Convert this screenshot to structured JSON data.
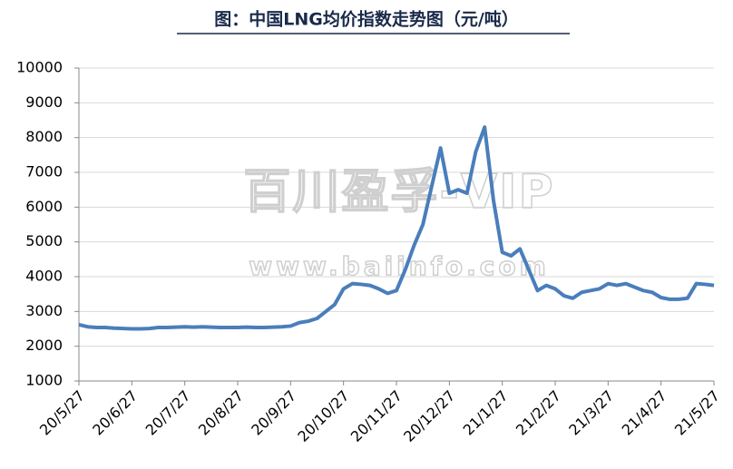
{
  "chart_data": {
    "type": "line",
    "title": "图：中国LNG均价指数走势图（元/吨）",
    "watermark": [
      "百川盈孚-VIP",
      "www.baiinfo.com"
    ],
    "categories": [
      "20/5/27",
      null,
      null,
      null,
      null,
      null,
      "20/6/27",
      null,
      null,
      null,
      null,
      null,
      "20/7/27",
      null,
      null,
      null,
      null,
      null,
      "20/8/27",
      null,
      null,
      null,
      null,
      null,
      "20/9/27",
      null,
      null,
      null,
      null,
      null,
      "20/10/27",
      null,
      null,
      null,
      null,
      null,
      "20/11/27",
      null,
      null,
      null,
      null,
      null,
      "20/12/27",
      null,
      null,
      null,
      null,
      null,
      "21/1/27",
      null,
      null,
      null,
      null,
      null,
      "21/2/27",
      null,
      null,
      null,
      null,
      null,
      "21/3/27",
      null,
      null,
      null,
      null,
      null,
      "21/4/27",
      null,
      null,
      null,
      null,
      null,
      "21/5/27"
    ],
    "values": [
      2620,
      2560,
      2540,
      2540,
      2520,
      2510,
      2500,
      2500,
      2510,
      2540,
      2540,
      2550,
      2560,
      2550,
      2560,
      2550,
      2540,
      2540,
      2540,
      2550,
      2540,
      2540,
      2550,
      2560,
      2580,
      2680,
      2720,
      2800,
      3000,
      3200,
      3650,
      3800,
      3780,
      3750,
      3650,
      3520,
      3600,
      4200,
      4900,
      5500,
      6600,
      7700,
      6400,
      6500,
      6400,
      7600,
      8300,
      6200,
      4700,
      4600,
      4800,
      4200,
      3600,
      3750,
      3650,
      3450,
      3380,
      3550,
      3600,
      3650,
      3800,
      3750,
      3800,
      3700,
      3600,
      3550,
      3400,
      3350,
      3350,
      3380,
      3800,
      3780,
      3750
    ],
    "color": "#4a7ebb",
    "ylim": [
      1000,
      10000
    ],
    "yticks": [
      1000,
      2000,
      3000,
      4000,
      5000,
      6000,
      7000,
      8000,
      9000,
      10000
    ],
    "grid": true
  }
}
